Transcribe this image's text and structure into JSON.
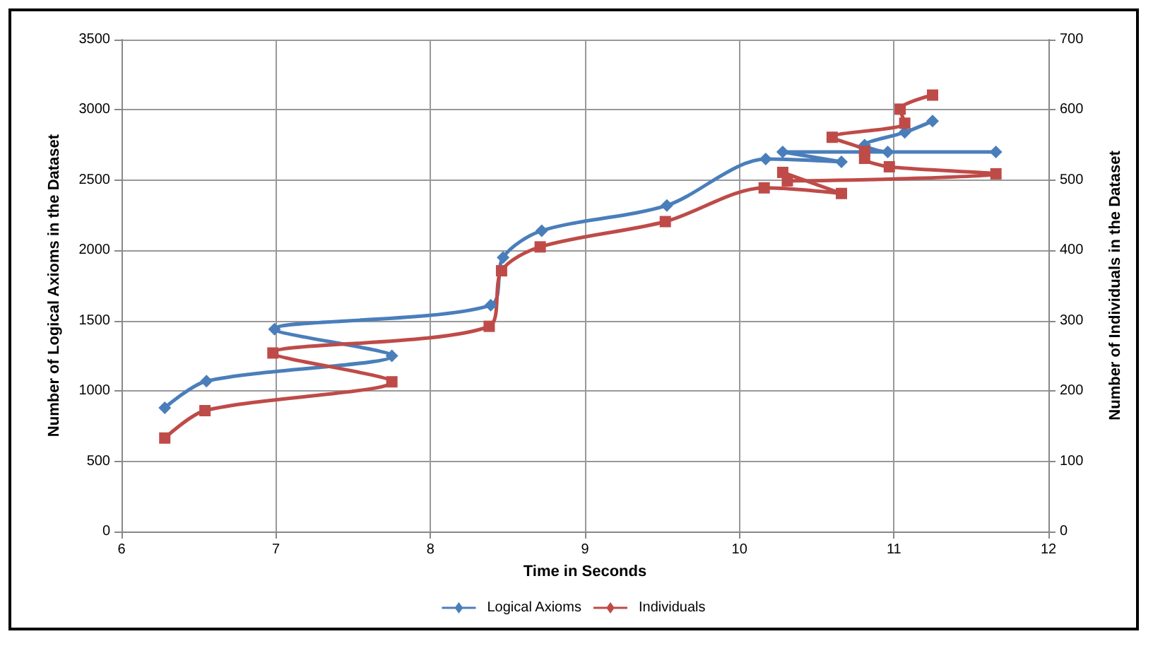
{
  "chart_data": {
    "type": "line",
    "xlabel": "Time in Seconds",
    "ylabel": "Number of Logical Axioms in the Dataset",
    "y2label": "Number of Individuals in the Dataset",
    "xlim": [
      6,
      12
    ],
    "xticks": [
      6,
      7,
      8,
      9,
      10,
      11,
      12
    ],
    "ylim": [
      0,
      3500
    ],
    "yticks": [
      0,
      500,
      1000,
      1500,
      2000,
      2500,
      3000,
      3500
    ],
    "y2lim": [
      0,
      700
    ],
    "y2ticks": [
      0,
      100,
      200,
      300,
      400,
      500,
      600,
      700
    ],
    "grid": true,
    "legend": "bottom",
    "line_style": "solid",
    "series": [
      {
        "name": "Logical Axioms",
        "color": "#4a7ebb",
        "marker": "diamond",
        "x": [
          6.28,
          6.55,
          7.75,
          6.99,
          8.39,
          8.47,
          8.72,
          9.53,
          10.17,
          10.66,
          10.28,
          11.66,
          10.96,
          10.81,
          11.07,
          11.25
        ],
        "values": [
          880,
          1070,
          1250,
          1440,
          1610,
          1950,
          2140,
          2320,
          2650,
          2630,
          2700,
          2700,
          2700,
          2750,
          2840,
          2920
        ]
      },
      {
        "name": "Individuals",
        "color": "#be4b48",
        "marker": "square",
        "axis": "y2",
        "x": [
          6.28,
          6.54,
          7.75,
          6.98,
          8.38,
          8.46,
          8.71,
          9.52,
          10.16,
          10.66,
          10.28,
          10.31,
          11.66,
          10.97,
          10.81,
          10.81,
          10.6,
          11.07,
          11.04,
          11.25
        ],
        "values": [
          133,
          172,
          213,
          254,
          292,
          371,
          405,
          441,
          489,
          481,
          511,
          499,
          509,
          519,
          531,
          541,
          561,
          581,
          601,
          621
        ]
      }
    ]
  }
}
